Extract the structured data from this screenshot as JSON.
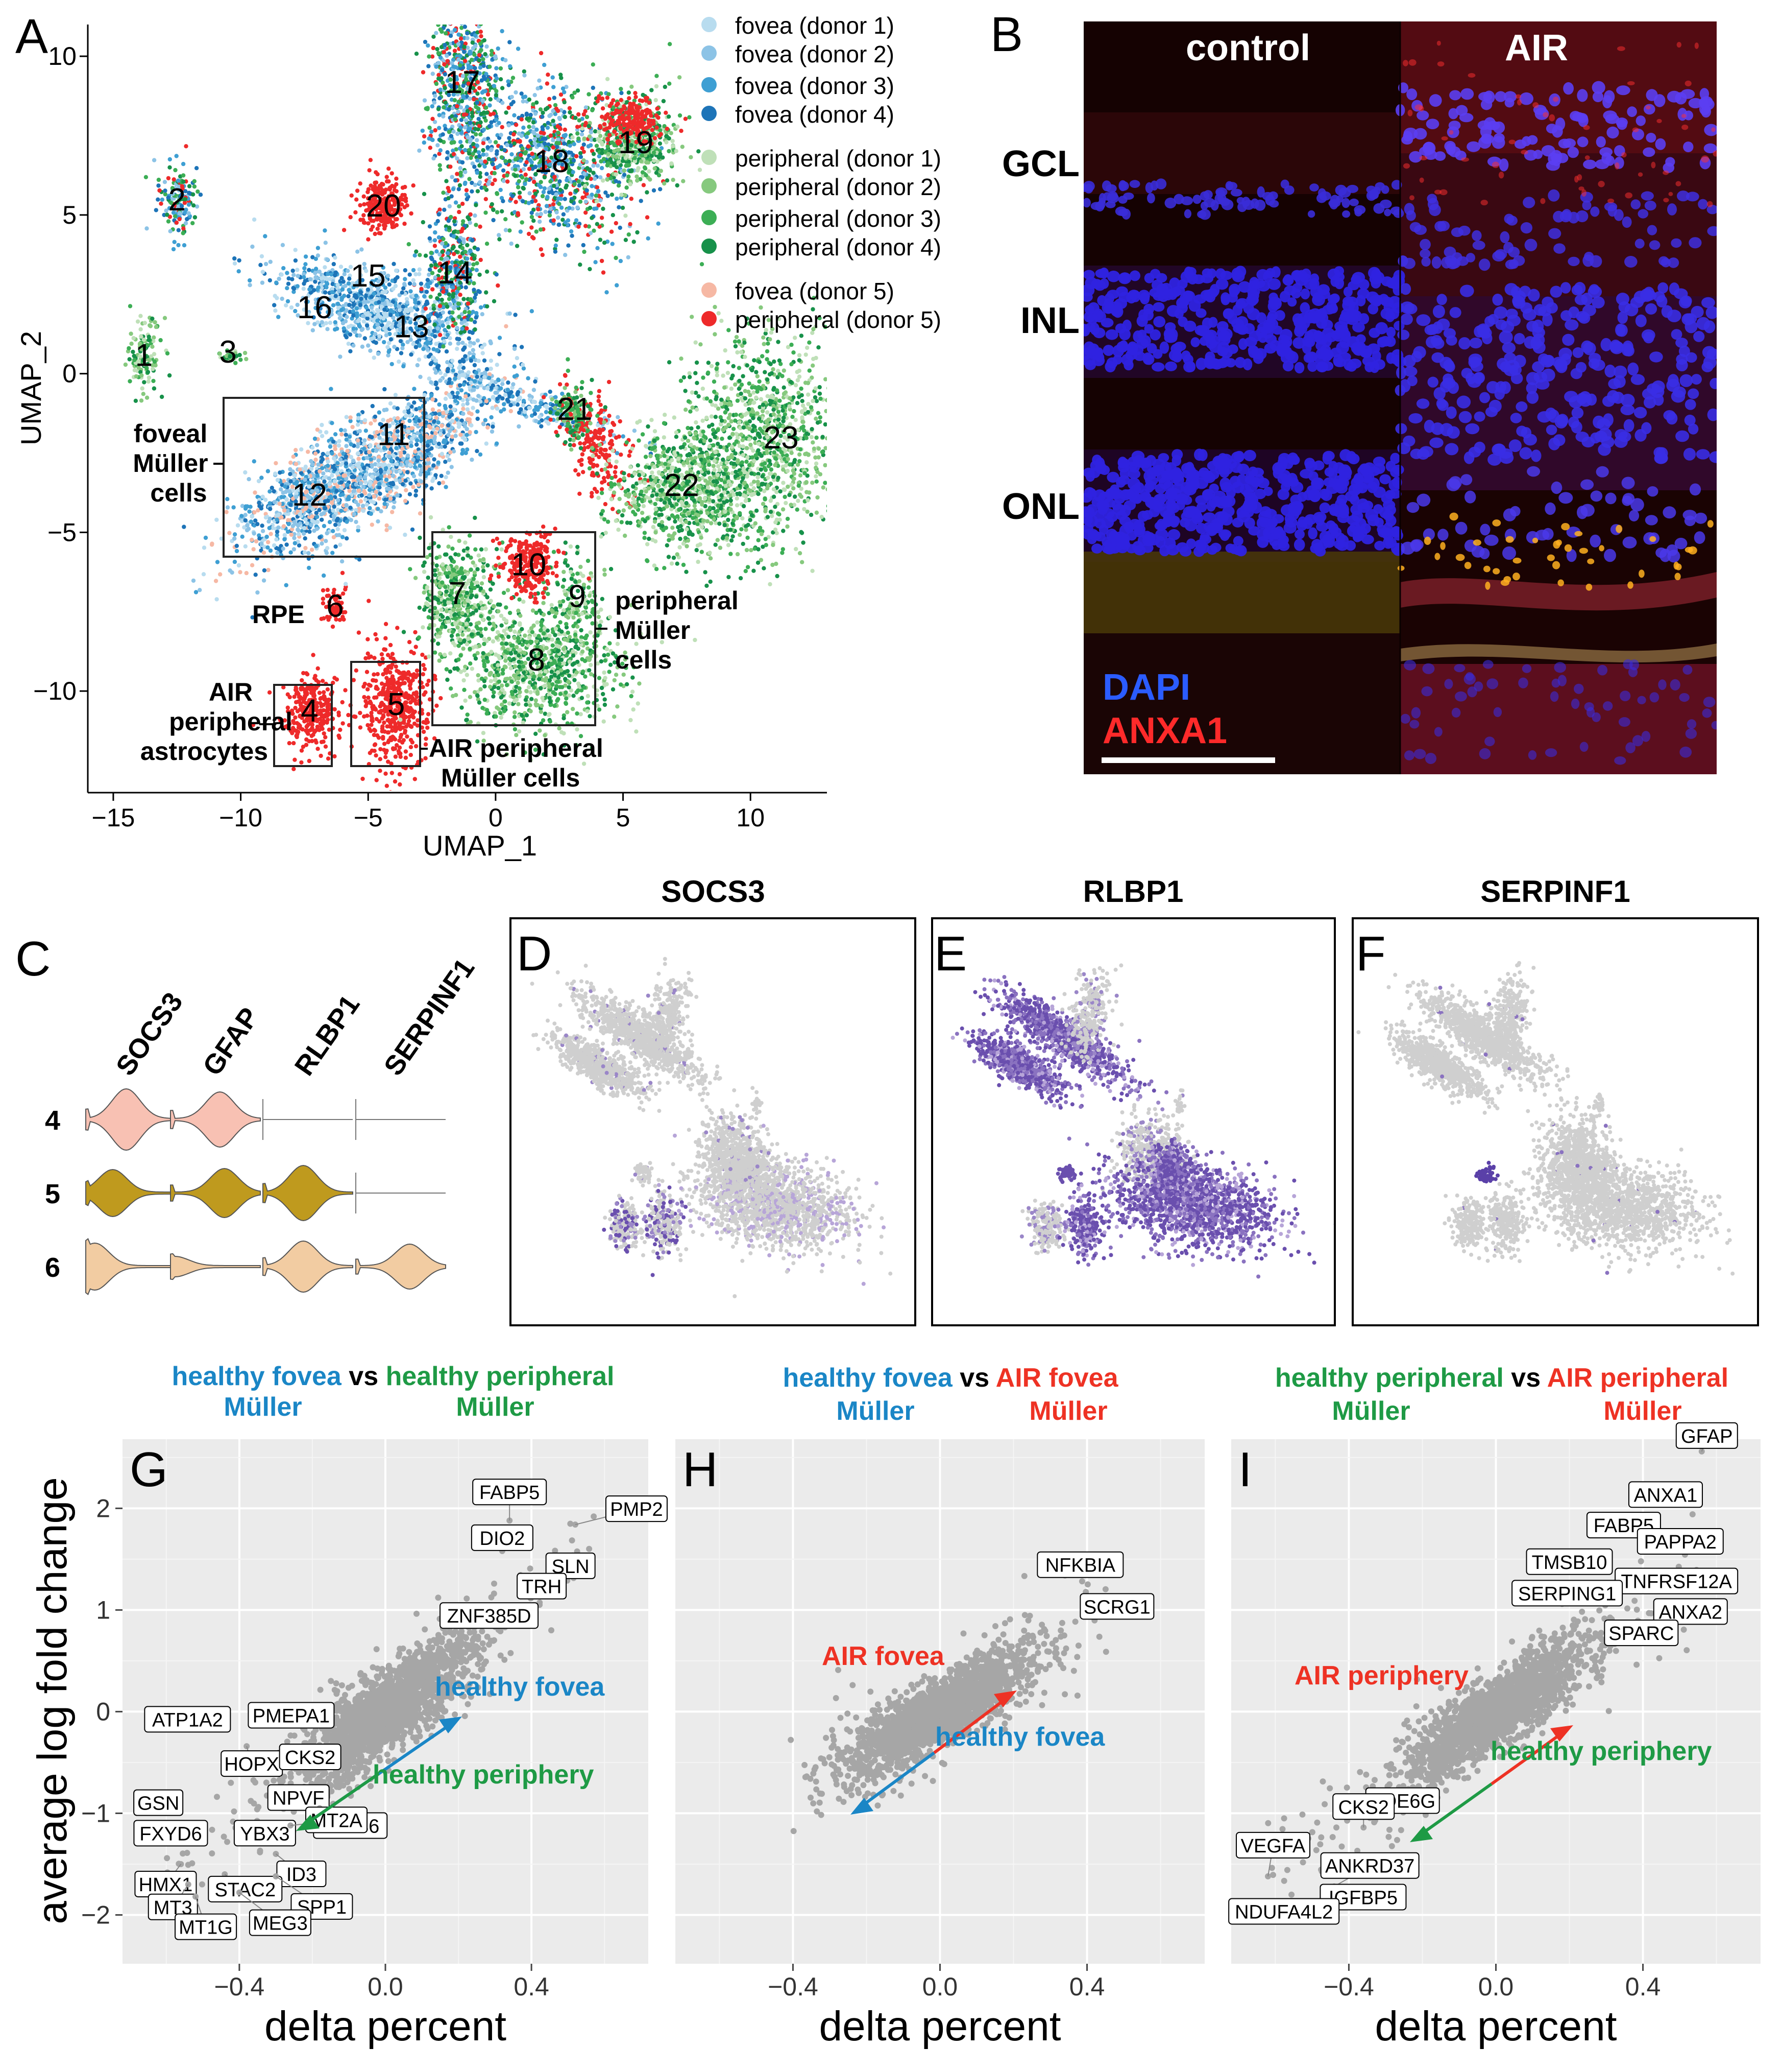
{
  "panel_letters": {
    "A": "A",
    "B": "B",
    "C": "C",
    "D": "D",
    "E": "E",
    "F": "F",
    "G": "G",
    "H": "H",
    "I": "I"
  },
  "colors": {
    "fovea_d1": "#b8dcef",
    "fovea_d2": "#8cc3e6",
    "fovea_d3": "#3e9fd3",
    "fovea_d4": "#1d74b8",
    "periph_d1": "#bfe0b8",
    "periph_d2": "#86c97e",
    "periph_d3": "#3cae55",
    "periph_d4": "#17914a",
    "fovea_d5": "#f6b8a4",
    "periph_d5": "#ee2a2a",
    "blue_text": "#1a86c6",
    "green_text": "#1e9a45",
    "red_text": "#ee3224",
    "panel_bg": "#ebebeb",
    "gray_pt": "#a6a6a6",
    "violet": "#6a4fae",
    "violet_light": "#b7a5d8"
  },
  "panelA": {
    "legend": [
      {
        "label": "fovea (donor 1)",
        "color": "#b8dcef"
      },
      {
        "label": "fovea (donor 2)",
        "color": "#8cc3e6"
      },
      {
        "label": "fovea (donor 3)",
        "color": "#3e9fd3"
      },
      {
        "label": "fovea (donor 4)",
        "color": "#1d74b8"
      },
      {
        "label": "peripheral (donor 1)",
        "color": "#bfe0b8"
      },
      {
        "label": "peripheral (donor 2)",
        "color": "#86c97e"
      },
      {
        "label": "peripheral (donor 3)",
        "color": "#3cae55"
      },
      {
        "label": "peripheral (donor 4)",
        "color": "#17914a"
      },
      {
        "label": "fovea (donor 5)",
        "color": "#f6b8a4"
      },
      {
        "label": "peripheral (donor 5)",
        "color": "#ee2a2a"
      }
    ],
    "xlabel": "UMAP_1",
    "ylabel": "UMAP_2",
    "xticks": [
      "−15",
      "−10",
      "−5",
      "0",
      "5",
      "10"
    ],
    "yticks": [
      "10",
      "5",
      "0",
      "−5",
      "−10"
    ],
    "cluster_numbers": [
      "1",
      "2",
      "3",
      "4",
      "5",
      "6",
      "7",
      "8",
      "9",
      "10",
      "11",
      "12",
      "13",
      "14",
      "15",
      "16",
      "17",
      "18",
      "19",
      "20",
      "21",
      "22",
      "23"
    ],
    "annotations": {
      "foveal": [
        "foveal",
        "Müller",
        "cells"
      ],
      "peripheral": [
        "peripheral",
        "Müller",
        "cells"
      ],
      "rpe": "RPE",
      "astro": [
        "AIR",
        "peripheral",
        "astrocytes"
      ],
      "airmuller": [
        "AIR peripheral",
        "Müller cells"
      ]
    }
  },
  "panelB": {
    "col_labels": [
      "control",
      "AIR"
    ],
    "layer_labels": [
      "GCL",
      "INL",
      "ONL"
    ],
    "stain_labels": [
      "DAPI",
      "ANXA1"
    ]
  },
  "panelC": {
    "genes": [
      "SOCS3",
      "GFAP",
      "RLBP1",
      "SERPINF1"
    ],
    "rows": [
      "4",
      "5",
      "6"
    ]
  },
  "featureplots": {
    "titles": [
      "SOCS3",
      "RLBP1",
      "SERPINF1"
    ]
  },
  "panelG": {
    "title_parts": [
      {
        "t": "healthy fovea",
        "c": "blue"
      },
      {
        "t": " vs ",
        "c": "black"
      },
      {
        "t": "healthy peripheral",
        "c": "green"
      }
    ],
    "title_line2": [
      {
        "t": "Müller",
        "c": "blue"
      },
      {
        "t": "Müller",
        "c": "green"
      }
    ],
    "arrow_labels": [
      "healthy fovea",
      "healthy periphery"
    ],
    "genes": [
      "FABP5",
      "PMP2",
      "DIO2",
      "SLN",
      "TRH",
      "ZNF385D",
      "ATP1A2",
      "PMEPA1",
      "HOPX",
      "CKS2",
      "GSN",
      "NPVF",
      "ZFP36",
      "FXYD6",
      "YBX3",
      "MT2A",
      "HMX1",
      "ID3",
      "MT3",
      "STAC2",
      "SPP1",
      "MT1G",
      "MEG3"
    ]
  },
  "panelH": {
    "title_parts": [
      {
        "t": "healthy fovea",
        "c": "blue"
      },
      {
        "t": " vs ",
        "c": "black"
      },
      {
        "t": "AIR fovea",
        "c": "red"
      }
    ],
    "title_line2": [
      {
        "t": "Müller",
        "c": "blue"
      },
      {
        "t": "Müller",
        "c": "red"
      }
    ],
    "arrow_labels": [
      "AIR fovea",
      "healthy fovea"
    ],
    "genes": [
      "NFKBIA",
      "SCRG1"
    ]
  },
  "panelI": {
    "title_parts": [
      {
        "t": "healthy peripheral",
        "c": "green"
      },
      {
        "t": " vs ",
        "c": "black"
      },
      {
        "t": "AIR peripheral",
        "c": "red"
      }
    ],
    "title_line2": [
      {
        "t": "Müller",
        "c": "green"
      },
      {
        "t": "Müller",
        "c": "red"
      }
    ],
    "arrow_labels": [
      "AIR periphery",
      "healthy periphery"
    ],
    "genes": [
      "GFAP",
      "ANXA1",
      "FABP5",
      "PAPPA2",
      "TMSB10",
      "TNFRSF12A",
      "SERPING1",
      "ANXA2",
      "SPARC",
      "PDE6G",
      "CKS2",
      "VEGFA",
      "ANKRD37",
      "IGFBP5",
      "NDUFA4L2"
    ]
  },
  "scatter_axes": {
    "xlabel": "delta percent",
    "ylabel": "average log fold change",
    "xticks": [
      "−0.4",
      "0.0",
      "0.4"
    ],
    "yticks": [
      "2",
      "1",
      "0",
      "−1",
      "−2"
    ]
  },
  "chart_data": [
    {
      "type": "scatter",
      "title": "",
      "xlabel": "UMAP_1",
      "ylabel": "UMAP_2",
      "xlim": [
        -16,
        13
      ],
      "ylim": [
        -13.2,
        11
      ],
      "series": [
        {
          "name": "fovea (donor 1)"
        },
        {
          "name": "fovea (donor 2)"
        },
        {
          "name": "fovea (donor 3)"
        },
        {
          "name": "fovea (donor 4)"
        },
        {
          "name": "peripheral (donor 1)"
        },
        {
          "name": "peripheral (donor 2)"
        },
        {
          "name": "peripheral (donor 3)"
        },
        {
          "name": "peripheral (donor 4)"
        },
        {
          "name": "fovea (donor 5)"
        },
        {
          "name": "peripheral (donor 5)"
        }
      ],
      "cluster_centers": [
        {
          "label": "1",
          "x": -13.8,
          "y": 0.6
        },
        {
          "label": "2",
          "x": -12.5,
          "y": 5.5
        },
        {
          "label": "3",
          "x": -10.5,
          "y": 0.7
        },
        {
          "label": "4",
          "x": -7.3,
          "y": -10.6
        },
        {
          "label": "5",
          "x": -3.9,
          "y": -10.4
        },
        {
          "label": "6",
          "x": -6.3,
          "y": -7.3
        },
        {
          "label": "7",
          "x": -1.5,
          "y": -6.9
        },
        {
          "label": "8",
          "x": 1.6,
          "y": -9.0
        },
        {
          "label": "9",
          "x": 3.2,
          "y": -7.0
        },
        {
          "label": "10",
          "x": 1.3,
          "y": -6.0
        },
        {
          "label": "11",
          "x": -4.0,
          "y": -1.9
        },
        {
          "label": "12",
          "x": -7.3,
          "y": -3.8
        },
        {
          "label": "13",
          "x": -3.3,
          "y": 1.5
        },
        {
          "label": "14",
          "x": -1.6,
          "y": 3.2
        },
        {
          "label": "15",
          "x": -5.0,
          "y": 3.1
        },
        {
          "label": "16",
          "x": -7.1,
          "y": 2.1
        },
        {
          "label": "17",
          "x": -1.3,
          "y": 9.2
        },
        {
          "label": "18",
          "x": 2.2,
          "y": 6.7
        },
        {
          "label": "19",
          "x": 5.5,
          "y": 7.3
        },
        {
          "label": "20",
          "x": -4.4,
          "y": 5.3
        },
        {
          "label": "21",
          "x": 3.1,
          "y": -1.1
        },
        {
          "label": "22",
          "x": 7.3,
          "y": -3.5
        },
        {
          "label": "23",
          "x": 11.2,
          "y": -2.0
        }
      ]
    },
    {
      "type": "scatter",
      "title": "healthy fovea vs healthy peripheral Müller",
      "xlabel": "delta percent",
      "ylabel": "average log fold change",
      "xlim": [
        -0.72,
        0.72
      ],
      "ylim": [
        -2.48,
        2.68
      ],
      "labeled_points": [
        {
          "gene": "FABP5",
          "x": 0.34,
          "y": 1.88
        },
        {
          "gene": "PMP2",
          "x": 0.52,
          "y": 1.84
        },
        {
          "gene": "DIO2",
          "x": 0.32,
          "y": 1.58
        },
        {
          "gene": "SLN",
          "x": 0.5,
          "y": 1.53
        },
        {
          "gene": "TRH",
          "x": 0.4,
          "y": 1.28
        },
        {
          "gene": "ZNF385D",
          "x": 0.2,
          "y": 0.84
        },
        {
          "gene": "ATP1A2",
          "x": -0.5,
          "y": 0.02
        },
        {
          "gene": "PMEPA1",
          "x": -0.3,
          "y": 0.06
        },
        {
          "gene": "HOPX",
          "x": -0.38,
          "y": -0.34
        },
        {
          "gene": "CKS2",
          "x": -0.22,
          "y": -0.4
        },
        {
          "gene": "GSN",
          "x": -0.58,
          "y": -0.8
        },
        {
          "gene": "NPVF",
          "x": -0.28,
          "y": -0.8
        },
        {
          "gene": "ZFP36",
          "x": -0.18,
          "y": -0.95
        },
        {
          "gene": "FXYD6",
          "x": -0.56,
          "y": -1.1
        },
        {
          "gene": "YBX3",
          "x": -0.4,
          "y": -1.15
        },
        {
          "gene": "MT2A",
          "x": -0.26,
          "y": -1.12
        },
        {
          "gene": "HMX1",
          "x": -0.56,
          "y": -1.5
        },
        {
          "gene": "ID3",
          "x": -0.3,
          "y": -1.4
        },
        {
          "gene": "MT3",
          "x": -0.54,
          "y": -1.7
        },
        {
          "gene": "STAC2",
          "x": -0.44,
          "y": -1.6
        },
        {
          "gene": "SPP1",
          "x": -0.3,
          "y": -1.62
        },
        {
          "gene": "MT1G",
          "x": -0.52,
          "y": -1.82
        },
        {
          "gene": "MEG3",
          "x": -0.4,
          "y": -1.78
        }
      ]
    },
    {
      "type": "scatter",
      "title": "healthy fovea vs AIR fovea Müller",
      "xlabel": "delta percent",
      "ylabel": "",
      "xlim": [
        -0.72,
        0.72
      ],
      "ylim": [
        -2.48,
        2.68
      ],
      "labeled_points": [
        {
          "gene": "NFKBIA",
          "x": 0.34,
          "y": 1.34
        },
        {
          "gene": "SCRG1",
          "x": 0.44,
          "y": 0.98
        }
      ]
    },
    {
      "type": "scatter",
      "title": "healthy peripheral vs AIR peripheral Müller",
      "xlabel": "delta percent",
      "ylabel": "",
      "xlim": [
        -0.72,
        0.72
      ],
      "ylim": [
        -2.48,
        2.68
      ],
      "labeled_points": [
        {
          "gene": "GFAP",
          "x": 0.56,
          "y": 2.56
        },
        {
          "gene": "ANXA1",
          "x": 0.42,
          "y": 2.08
        },
        {
          "gene": "FABP5",
          "x": 0.32,
          "y": 1.78
        },
        {
          "gene": "PAPPA2",
          "x": 0.46,
          "y": 1.62
        },
        {
          "gene": "TMSB10",
          "x": 0.2,
          "y": 1.42
        },
        {
          "gene": "TNFRSF12A",
          "x": 0.38,
          "y": 1.28
        },
        {
          "gene": "SERPING1",
          "x": 0.18,
          "y": 1.06
        },
        {
          "gene": "ANXA2",
          "x": 0.46,
          "y": 0.98
        },
        {
          "gene": "SPARC",
          "x": 0.34,
          "y": 0.72
        },
        {
          "gene": "PDE6G",
          "x": -0.24,
          "y": -0.78
        },
        {
          "gene": "CKS2",
          "x": -0.36,
          "y": -1.14
        },
        {
          "gene": "VEGFA",
          "x": -0.62,
          "y": -1.62
        },
        {
          "gene": "ANKRD37",
          "x": -0.44,
          "y": -1.72
        },
        {
          "gene": "IGFBP5",
          "x": -0.5,
          "y": -1.98
        },
        {
          "gene": "NDUFA4L2",
          "x": -0.66,
          "y": -2.02
        }
      ]
    }
  ]
}
